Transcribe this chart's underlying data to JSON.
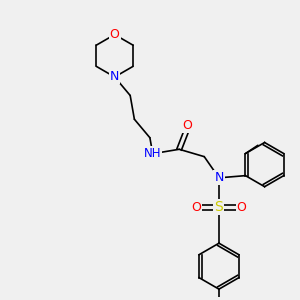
{
  "bg_color": "#f0f0f0",
  "atom_colors": {
    "N": "#0000ff",
    "O": "#ff0000",
    "S": "#cccc00",
    "H": "#7ab0b0"
  },
  "bond_color": "#000000",
  "figsize": [
    3.0,
    3.0
  ],
  "dpi": 100
}
